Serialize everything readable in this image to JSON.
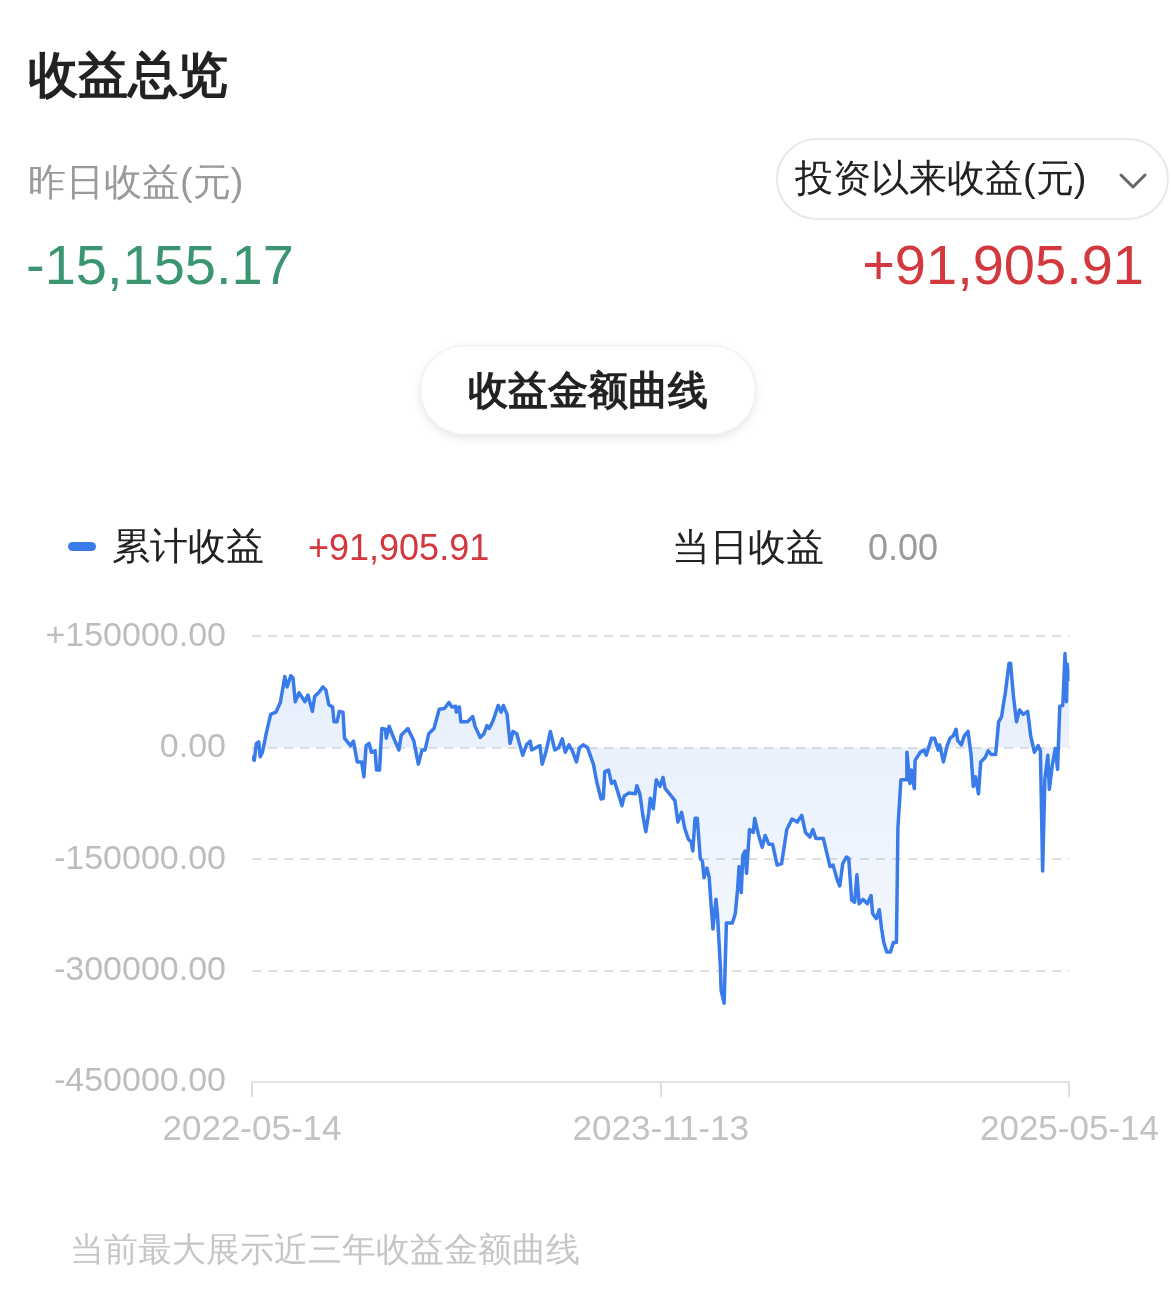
{
  "chart_data": {
    "type": "area",
    "title": "收益总览",
    "annotations": [
      "昨日收益(元)",
      "-15,155.17",
      "投资以来收益(元)",
      "+91,905.91",
      "收益金额曲线",
      "+91,905.91",
      "当日收益",
      "0.00",
      "当前最大展示近三年收益金额曲线"
    ],
    "x": [
      "2022-05-14",
      "2022-05-17",
      "2022-05-20",
      "2022-05-23",
      "2022-05-25",
      "2022-05-28",
      "2022-06-02",
      "2022-06-08",
      "2022-06-15",
      "2022-06-21",
      "2022-06-25",
      "2022-06-27",
      "2022-06-30",
      "2022-07-05",
      "2022-07-08",
      "2022-07-11",
      "2022-07-16",
      "2022-07-24",
      "2022-07-28",
      "2022-08-03",
      "2022-08-06",
      "2022-08-12",
      "2022-08-17",
      "2022-08-21",
      "2022-08-25",
      "2022-08-30",
      "2022-09-01",
      "2022-09-05",
      "2022-09-08",
      "2022-09-13",
      "2022-09-15",
      "2022-09-23",
      "2022-09-27",
      "2022-10-02",
      "2022-10-08",
      "2022-10-11",
      "2022-10-14",
      "2022-10-18",
      "2022-10-21",
      "2022-10-26",
      "2022-10-28",
      "2022-11-01",
      "2022-11-04",
      "2022-11-09",
      "2022-11-10",
      "2022-11-14",
      "2022-11-20",
      "2022-11-27",
      "2022-11-30",
      "2022-12-09",
      "2022-12-17",
      "2022-12-23",
      "2022-12-28",
      "2023-01-01",
      "2023-01-06",
      "2023-01-13",
      "2023-01-20",
      "2023-01-27",
      "2023-02-02",
      "2023-02-06",
      "2023-02-11",
      "2023-02-12",
      "2023-02-16",
      "2023-02-18",
      "2023-02-27",
      "2023-03-06",
      "2023-03-09",
      "2023-03-16",
      "2023-03-21",
      "2023-03-25",
      "2023-03-28",
      "2023-04-02",
      "2023-04-09",
      "2023-04-13",
      "2023-04-16",
      "2023-04-21",
      "2023-04-25",
      "2023-04-29",
      "2023-05-04",
      "2023-05-08",
      "2023-05-12",
      "2023-05-17",
      "2023-05-22",
      "2023-05-24",
      "2023-06-04",
      "2023-06-07",
      "2023-06-12",
      "2023-06-18",
      "2023-06-24",
      "2023-06-29",
      "2023-07-04",
      "2023-07-08",
      "2023-07-13",
      "2023-07-17",
      "2023-07-23",
      "2023-07-27",
      "2023-08-01",
      "2023-08-07",
      "2023-08-15",
      "2023-08-19",
      "2023-08-25",
      "2023-08-28",
      "2023-08-30",
      "2023-09-04",
      "2023-09-08",
      "2023-09-12",
      "2023-09-16",
      "2023-09-22",
      "2023-09-25",
      "2023-10-01",
      "2023-10-10",
      "2023-10-12",
      "2023-10-16",
      "2023-10-20",
      "2023-10-24",
      "2023-10-28",
      "2023-10-30",
      "2023-11-03",
      "2023-11-07",
      "2023-11-12",
      "2023-11-16",
      "2023-11-19",
      "2023-11-24",
      "2023-12-02",
      "2023-12-06",
      "2023-12-11",
      "2023-12-15",
      "2023-12-20",
      "2023-12-24",
      "2023-12-26",
      "2023-12-29",
      "2024-01-01",
      "2024-01-05",
      "2024-01-08",
      "2024-01-10",
      "2024-01-14",
      "2024-01-17",
      "2024-01-19",
      "2024-01-22",
      "2024-01-26",
      "2024-01-28",
      "2024-02-01",
      "2024-02-02",
      "2024-02-06",
      "2024-02-09",
      "2024-02-17",
      "2024-02-21",
      "2024-02-24",
      "2024-02-26",
      "2024-02-29",
      "2024-03-02",
      "2024-03-05",
      "2024-03-07",
      "2024-03-11",
      "2024-03-16",
      "2024-03-18",
      "2024-03-23",
      "2024-03-28",
      "2024-04-01",
      "2024-04-06",
      "2024-04-11",
      "2024-04-17",
      "2024-04-23",
      "2024-04-27",
      "2024-04-30",
      "2024-05-07",
      "2024-05-14",
      "2024-05-20",
      "2024-05-25",
      "2024-05-31",
      "2024-06-04",
      "2024-06-08",
      "2024-06-18",
      "2024-06-22",
      "2024-06-27",
      "2024-07-01",
      "2024-07-07",
      "2024-07-10",
      "2024-07-14",
      "2024-07-19",
      "2024-07-22",
      "2024-07-26",
      "2024-07-30",
      "2024-08-02",
      "2024-08-05",
      "2024-08-10",
      "2024-08-16",
      "2024-08-21",
      "2024-08-23",
      "2024-08-28",
      "2024-09-01",
      "2024-09-04",
      "2024-09-07",
      "2024-09-11",
      "2024-09-16",
      "2024-09-20",
      "2024-09-24",
      "2024-09-26",
      "2024-09-30",
      "2024-10-07",
      "2024-10-08",
      "2024-10-12",
      "2024-10-14",
      "2024-10-18",
      "2024-10-19",
      "2024-10-26",
      "2024-10-31",
      "2024-11-03",
      "2024-11-10",
      "2024-11-14",
      "2024-11-19",
      "2024-11-21",
      "2024-11-26",
      "2024-12-01",
      "2024-12-05",
      "2024-12-09",
      "2024-12-13",
      "2024-12-15",
      "2024-12-20",
      "2024-12-24",
      "2024-12-29",
      "2025-01-02",
      "2025-01-05",
      "2025-01-08",
      "2025-01-12",
      "2025-01-15",
      "2025-01-21",
      "2025-01-25",
      "2025-01-29",
      "2025-02-04",
      "2025-02-08",
      "2025-02-12",
      "2025-02-14",
      "2025-02-17",
      "2025-02-22",
      "2025-02-24",
      "2025-02-28",
      "2025-03-04",
      "2025-03-08",
      "2025-03-13",
      "2025-03-19",
      "2025-03-23",
      "2025-03-28",
      "2025-04-02",
      "2025-04-05",
      "2025-04-08",
      "2025-04-11",
      "2025-04-15",
      "2025-04-17",
      "2025-04-21",
      "2025-04-25",
      "2025-04-28",
      "2025-05-01",
      "2025-05-05",
      "2025-05-08",
      "2025-05-10",
      "2025-05-11",
      "2025-05-14"
    ],
    "series": [
      {
        "name": "累计收益",
        "color": "#3a7bea",
        "values": [
          -13000,
          -17000,
          6000,
          8000,
          -12000,
          -6000,
          19000,
          45000,
          48000,
          61000,
          84000,
          96000,
          82000,
          97000,
          94000,
          62000,
          74000,
          62000,
          71000,
          49000,
          69000,
          75000,
          82000,
          78000,
          58000,
          55000,
          35000,
          35000,
          49000,
          48000,
          13000,
          3000,
          9000,
          -19000,
          -19000,
          -39000,
          3000,
          6000,
          -6000,
          -4000,
          -30000,
          -30000,
          26000,
          25000,
          13000,
          29000,
          13000,
          -3000,
          17000,
          26000,
          9000,
          -22000,
          -3000,
          -3000,
          19000,
          26000,
          52000,
          53000,
          61000,
          55000,
          56000,
          48000,
          55000,
          35000,
          35000,
          42000,
          29000,
          14000,
          19000,
          30000,
          26000,
          36000,
          57000,
          48000,
          57000,
          45000,
          6000,
          22000,
          19000,
          4000,
          -10000,
          4000,
          9000,
          -3000,
          3000,
          -22000,
          -6000,
          22000,
          -3000,
          0,
          12000,
          -6000,
          4000,
          -3000,
          -19000,
          0,
          4000,
          0,
          -23000,
          -45000,
          -69000,
          -68000,
          -32000,
          -30000,
          -48000,
          -45000,
          -58000,
          -78000,
          -65000,
          -61000,
          -62000,
          -51000,
          -62000,
          -91000,
          -113000,
          -87000,
          -68000,
          -82000,
          -43000,
          -52000,
          -40000,
          -55000,
          -61000,
          -71000,
          -100000,
          -87000,
          -108000,
          -123000,
          -127000,
          -139000,
          -95000,
          -95000,
          -149000,
          -153000,
          -175000,
          -162000,
          -175000,
          -205000,
          -244000,
          -204000,
          -223000,
          -296000,
          -327000,
          -344000,
          -236000,
          -236000,
          -223000,
          -191000,
          -160000,
          -195000,
          -145000,
          -139000,
          -169000,
          -110000,
          -114000,
          -95000,
          -117000,
          -134000,
          -118000,
          -130000,
          -130000,
          -158000,
          -156000,
          -130000,
          -110000,
          -96000,
          -100000,
          -91000,
          -114000,
          -120000,
          -110000,
          -122000,
          -122000,
          -139000,
          -160000,
          -158000,
          -179000,
          -186000,
          -156000,
          -147000,
          -149000,
          -205000,
          -208000,
          -171000,
          -210000,
          -204000,
          -210000,
          -199000,
          -223000,
          -230000,
          -218000,
          -243000,
          -262000,
          -275000,
          -275000,
          -262000,
          -262000,
          -107000,
          -43000,
          -43000,
          -6000,
          -48000,
          -30000,
          -55000,
          -17000,
          -6000,
          -3000,
          -10000,
          13000,
          13000,
          -3000,
          4000,
          -19000,
          3000,
          13000,
          16000,
          25000,
          10000,
          4000,
          16000,
          22000,
          -9000,
          -52000,
          -39000,
          -62000,
          -19000,
          -13000,
          -4000,
          -9000,
          -9000,
          35000,
          42000,
          56000,
          74000,
          114000,
          114000,
          68000,
          35000,
          51000,
          45000,
          49000,
          16000,
          -6000,
          3000,
          -4000,
          -166000,
          -42000,
          -10000,
          -56000,
          -23000,
          -1000,
          -29000,
          56000,
          57000,
          127000,
          62000,
          113000,
          92000
        ]
      }
    ],
    "xlim": [
      "2022-05-14",
      "2025-05-14"
    ],
    "xticks": [
      "2022-05-14",
      "2023-11-13",
      "2025-05-14"
    ],
    "ylim": [
      -450000,
      150000
    ],
    "yticks": [
      {
        "value": 150000,
        "label": "+150000.00"
      },
      {
        "value": 0,
        "label": "0.00"
      },
      {
        "value": -150000,
        "label": "-150000.00"
      },
      {
        "value": -300000,
        "label": "-300000.00"
      },
      {
        "value": -450000,
        "label": "-450000.00"
      }
    ],
    "grid": "y",
    "legend": "top left",
    "marker": "none",
    "line_style": "solid"
  }
}
